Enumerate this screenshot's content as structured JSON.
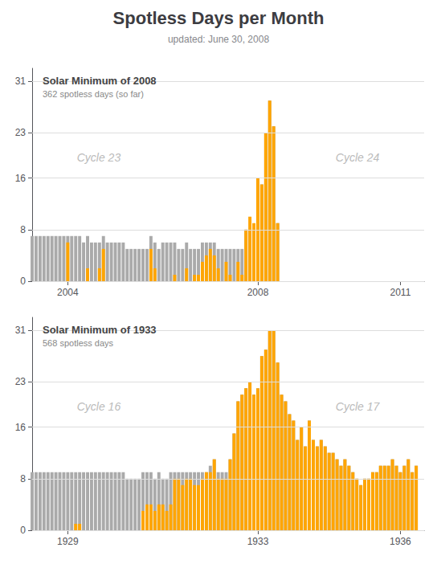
{
  "title": "Spotless Days per Month",
  "subtitle": "updated: June 30, 2008",
  "chart_data": [
    {
      "type": "bar",
      "title": "Solar Minimum of 2008",
      "subtitle": "362 spotless days (so far)",
      "annotations": [
        "Cycle 23",
        "Cycle 24"
      ],
      "x": [
        2003.25,
        2003.333,
        2003.417,
        2003.5,
        2003.583,
        2003.667,
        2003.75,
        2003.833,
        2003.917,
        2004.0,
        2004.083,
        2004.167,
        2004.25,
        2004.333,
        2004.417,
        2004.5,
        2004.583,
        2004.667,
        2004.75,
        2004.833,
        2004.917,
        2005.0,
        2005.083,
        2005.167,
        2005.25,
        2005.333,
        2005.417,
        2005.5,
        2005.583,
        2005.667,
        2005.75,
        2005.833,
        2005.917,
        2006.0,
        2006.083,
        2006.167,
        2006.25,
        2006.333,
        2006.417,
        2006.5,
        2006.583,
        2006.667,
        2006.75,
        2006.833,
        2006.917,
        2007.0,
        2007.083,
        2007.167,
        2007.25,
        2007.333,
        2007.417,
        2007.5,
        2007.583,
        2007.667,
        2007.75,
        2007.833,
        2007.917,
        2008.0,
        2008.083,
        2008.167,
        2008.25,
        2008.333,
        2008.417
      ],
      "series": [
        {
          "color": "#aaaaaa",
          "values": [
            7,
            7,
            7,
            7,
            7,
            7,
            7,
            7,
            7,
            7,
            7,
            7,
            7,
            6,
            7,
            6,
            6,
            6,
            7,
            6,
            6,
            6,
            6,
            6,
            5,
            5,
            5,
            5,
            5,
            5,
            7,
            6,
            5,
            6,
            6,
            6,
            6,
            5,
            5,
            6,
            5,
            5,
            5,
            6,
            6,
            6,
            6,
            5,
            5,
            5,
            5,
            5,
            5,
            5,
            8,
            8,
            8,
            16,
            15,
            23,
            28,
            24,
            9
          ]
        },
        {
          "color": "#FFA500",
          "values": [
            0,
            0,
            0,
            0,
            0,
            0,
            0,
            0,
            0,
            6,
            0,
            0,
            0,
            0,
            2,
            0,
            0,
            2,
            5,
            0,
            0,
            0,
            0,
            0,
            0,
            0,
            0,
            0,
            0,
            0,
            5,
            2,
            0,
            0,
            0,
            0,
            1,
            0,
            0,
            2,
            0,
            1,
            1,
            3,
            4,
            5,
            4,
            2,
            0,
            3,
            1,
            0,
            3,
            1,
            8,
            10,
            9,
            16,
            15,
            23,
            28,
            24,
            9
          ]
        }
      ],
      "xlim": [
        2003.25,
        2011.5
      ],
      "xticks": [
        2004,
        2008,
        2011
      ],
      "ylim": [
        0,
        33
      ],
      "yticks": [
        0,
        8,
        16,
        23,
        31
      ],
      "grid": true
    },
    {
      "type": "bar",
      "title": "Solar Minimum of 1933",
      "subtitle": "568 spotless days",
      "annotations": [
        "Cycle 16",
        "Cycle 17"
      ],
      "x": [
        1928.25,
        1928.333,
        1928.417,
        1928.5,
        1928.583,
        1928.667,
        1928.75,
        1928.833,
        1928.917,
        1929.0,
        1929.083,
        1929.167,
        1929.25,
        1929.333,
        1929.417,
        1929.5,
        1929.583,
        1929.667,
        1929.75,
        1929.833,
        1929.917,
        1930.0,
        1930.083,
        1930.167,
        1930.25,
        1930.333,
        1930.417,
        1930.5,
        1930.583,
        1930.667,
        1930.75,
        1930.833,
        1930.917,
        1931.0,
        1931.083,
        1931.167,
        1931.25,
        1931.333,
        1931.417,
        1931.5,
        1931.583,
        1931.667,
        1931.75,
        1931.833,
        1931.917,
        1932.0,
        1932.083,
        1932.167,
        1932.25,
        1932.333,
        1932.417,
        1932.5,
        1932.583,
        1932.667,
        1932.75,
        1932.833,
        1932.917,
        1933.0,
        1933.083,
        1933.167,
        1933.25,
        1933.333,
        1933.417,
        1933.5,
        1933.583,
        1933.667,
        1933.75,
        1933.833,
        1933.917,
        1934.0,
        1934.083,
        1934.167,
        1934.25,
        1934.333,
        1934.417,
        1934.5,
        1934.583,
        1934.667,
        1934.75,
        1934.833,
        1934.917,
        1935.0,
        1935.083,
        1935.167,
        1935.25,
        1935.333,
        1935.417,
        1935.5,
        1935.583,
        1935.667,
        1935.75,
        1935.833,
        1935.917,
        1936.0,
        1936.083,
        1936.167,
        1936.25,
        1936.333
      ],
      "series": [
        {
          "color": "#aaaaaa",
          "values": [
            9,
            9,
            9,
            9,
            9,
            9,
            9,
            9,
            9,
            9,
            9,
            9,
            9,
            9,
            9,
            9,
            9,
            9,
            9,
            9,
            9,
            9,
            9,
            9,
            8,
            8,
            8,
            8,
            9,
            9,
            9,
            8,
            9,
            8,
            8,
            9,
            9,
            9,
            9,
            9,
            9,
            9,
            9,
            9,
            9,
            10,
            11,
            9,
            9,
            9,
            11,
            15,
            20,
            21,
            22,
            23,
            21,
            22,
            27,
            28,
            31,
            31,
            26,
            21,
            20,
            18,
            17,
            14,
            16,
            13,
            17,
            14,
            13,
            14,
            13,
            12,
            12,
            11,
            10,
            11,
            10,
            9,
            8,
            7,
            8,
            8,
            9,
            9,
            10,
            10,
            10,
            11,
            10,
            9,
            10,
            11,
            9,
            10
          ]
        },
        {
          "color": "#FFA500",
          "values": [
            0,
            0,
            0,
            0,
            0,
            0,
            0,
            0,
            0,
            0,
            0,
            1,
            1,
            0,
            0,
            0,
            0,
            0,
            0,
            0,
            0,
            0,
            0,
            0,
            0,
            0,
            0,
            0,
            3,
            4,
            4,
            3,
            4,
            4,
            3,
            4,
            8,
            8,
            7,
            8,
            8,
            7,
            7,
            8,
            9,
            9,
            11,
            8,
            8,
            8,
            11,
            15,
            20,
            21,
            22,
            23,
            21,
            22,
            27,
            28,
            31,
            31,
            26,
            21,
            20,
            18,
            17,
            14,
            16,
            13,
            17,
            14,
            13,
            14,
            13,
            12,
            12,
            11,
            10,
            11,
            10,
            9,
            8,
            7,
            8,
            8,
            9,
            9,
            10,
            10,
            10,
            11,
            10,
            9,
            10,
            11,
            9,
            10
          ]
        }
      ],
      "xlim": [
        1928.25,
        1936.5
      ],
      "xticks": [
        1929,
        1933,
        1936
      ],
      "ylim": [
        0,
        33
      ],
      "yticks": [
        0,
        8,
        16,
        23,
        31
      ],
      "grid": true
    }
  ]
}
